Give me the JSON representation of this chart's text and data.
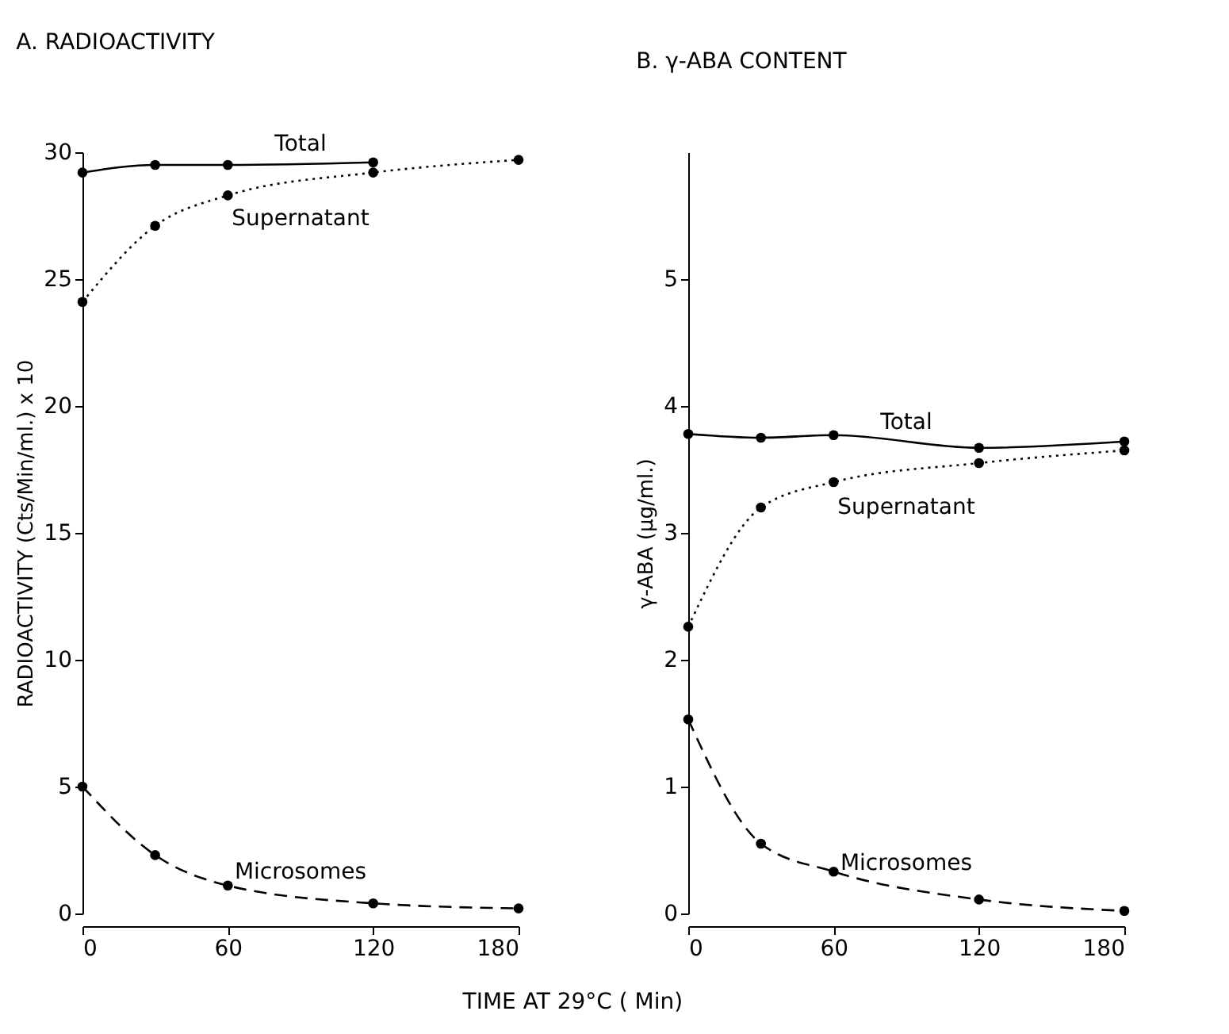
{
  "chart_data": [
    {
      "type": "line",
      "title": "A. RADIOACTIVITY",
      "xlabel": "TIME AT 29°C ( Min)",
      "ylabel": "RADIOACTIVITY (Cts/Min/ml.) x 10",
      "x": [
        0,
        30,
        60,
        120,
        180
      ],
      "xlim": [
        0,
        180
      ],
      "xticks": [
        0,
        60,
        120,
        180
      ],
      "ylim": [
        0,
        30
      ],
      "yticks": [
        0,
        5,
        10,
        15,
        20,
        25,
        30
      ],
      "grid": false,
      "marker": "circle",
      "series": [
        {
          "name": "Total",
          "color": "#000000",
          "line_style": "solid",
          "values": [
            29.2,
            29.5,
            29.5,
            29.6,
            null
          ]
        },
        {
          "name": "Supernatant",
          "color": "#000000",
          "line_style": "dotted",
          "values": [
            24.1,
            27.1,
            28.3,
            29.2,
            29.7
          ]
        },
        {
          "name": "Microsomes",
          "color": "#000000",
          "line_style": "dashed",
          "values": [
            5.0,
            2.3,
            1.1,
            0.4,
            0.2
          ]
        }
      ]
    },
    {
      "type": "line",
      "title": "B. γ-ABA CONTENT",
      "ylabel": "γ-ABA (μg/ml.)",
      "x": [
        0,
        30,
        60,
        120,
        180
      ],
      "xlim": [
        0,
        180
      ],
      "xticks": [
        0,
        60,
        120,
        180
      ],
      "ylim": [
        0,
        6
      ],
      "yticks": [
        0,
        1,
        2,
        3,
        4,
        5
      ],
      "grid": false,
      "marker": "circle",
      "series": [
        {
          "name": "Total",
          "color": "#000000",
          "line_style": "solid",
          "values": [
            3.78,
            3.75,
            3.77,
            3.67,
            3.72
          ]
        },
        {
          "name": "Supernatant",
          "color": "#000000",
          "line_style": "dotted",
          "values": [
            2.26,
            3.2,
            3.4,
            3.55,
            3.65
          ]
        },
        {
          "name": "Microsomes",
          "color": "#000000",
          "line_style": "dashed",
          "values": [
            1.53,
            0.55,
            0.33,
            0.11,
            0.02
          ]
        }
      ]
    }
  ]
}
